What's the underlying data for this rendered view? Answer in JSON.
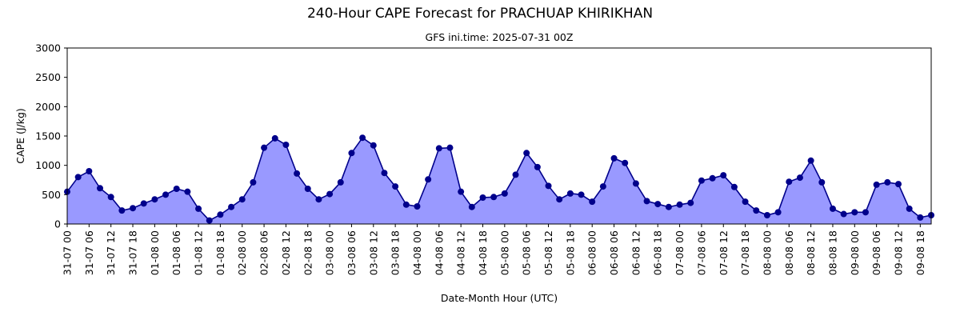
{
  "chart_data": {
    "type": "area",
    "title": "240-Hour CAPE Forecast for PRACHUAP KHIRIKHAN",
    "subtitle": "GFS ini.time: 2025-07-31 00Z",
    "xlabel": "Date-Month Hour (UTC)",
    "ylabel": "CAPE (J/kg)",
    "ylim": [
      0,
      3000
    ],
    "yticks": [
      0,
      500,
      1000,
      1500,
      2000,
      2500,
      3000
    ],
    "x_step_hours": 3,
    "x_tick_every": 2,
    "x_tick_labels": [
      "31-07 00",
      "31-07 06",
      "31-07 12",
      "31-07 18",
      "01-08 00",
      "01-08 06",
      "01-08 12",
      "01-08 18",
      "02-08 00",
      "02-08 06",
      "02-08 12",
      "02-08 18",
      "03-08 00",
      "03-08 06",
      "03-08 12",
      "03-08 18",
      "04-08 00",
      "04-08 06",
      "04-08 12",
      "04-08 18",
      "05-08 00",
      "05-08 06",
      "05-08 12",
      "05-08 18",
      "06-08 00",
      "06-08 06",
      "06-08 12",
      "06-08 18",
      "07-08 00",
      "07-08 06",
      "07-08 12",
      "07-08 18",
      "08-08 00",
      "08-08 06",
      "08-08 12",
      "08-08 18",
      "09-08 00",
      "09-08 06",
      "09-08 12",
      "09-08 18"
    ],
    "values": [
      550,
      800,
      900,
      610,
      460,
      230,
      270,
      350,
      420,
      500,
      600,
      550,
      260,
      60,
      160,
      290,
      420,
      710,
      1300,
      1460,
      1350,
      860,
      600,
      420,
      510,
      710,
      1210,
      1470,
      1340,
      870,
      640,
      330,
      300,
      760,
      1290,
      1300,
      550,
      290,
      450,
      460,
      520,
      840,
      1210,
      970,
      650,
      420,
      520,
      500,
      380,
      640,
      1120,
      1040,
      690,
      390,
      340,
      290,
      330,
      360,
      740,
      780,
      830,
      630,
      380,
      230,
      150,
      200,
      720,
      790,
      1080,
      710,
      260,
      170,
      200,
      200,
      670,
      710,
      680,
      260,
      110,
      150
    ],
    "legend": "none",
    "grid": false,
    "colors": {
      "fill": "#9999ff",
      "line": "#00008b",
      "marker": "#00008b"
    }
  }
}
